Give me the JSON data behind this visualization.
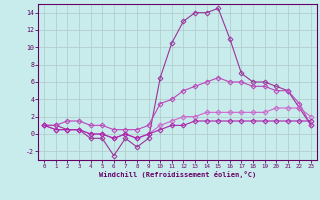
{
  "xlabel": "Windchill (Refroidissement éolien,°C)",
  "background_color": "#c8ecec",
  "grid_color": "#b0c8c8",
  "x": [
    0,
    1,
    2,
    3,
    4,
    5,
    6,
    7,
    8,
    9,
    10,
    11,
    12,
    13,
    14,
    15,
    16,
    17,
    18,
    19,
    20,
    21,
    22,
    23
  ],
  "line1": [
    1,
    1,
    0.5,
    0.5,
    -0.5,
    -0.5,
    -2.5,
    -0.5,
    -1.5,
    -0.5,
    6.5,
    10.5,
    13,
    14,
    14,
    14.5,
    11,
    7,
    6,
    6,
    5.5,
    5,
    3,
    1
  ],
  "line2": [
    1,
    1,
    1.5,
    1.5,
    1,
    1,
    0.5,
    0.5,
    0.5,
    1,
    3.5,
    4,
    5,
    5.5,
    6,
    6.5,
    6,
    6,
    5.5,
    5.5,
    5,
    5,
    3.5,
    1
  ],
  "line3": [
    1,
    0.5,
    0.5,
    0.5,
    0,
    0,
    -0.5,
    0,
    -0.5,
    0,
    1,
    1.5,
    2,
    2,
    2.5,
    2.5,
    2.5,
    2.5,
    2.5,
    2.5,
    3,
    3,
    3,
    2
  ],
  "line4": [
    1,
    0.5,
    0.5,
    0.5,
    0,
    0,
    -0.5,
    0,
    -0.5,
    0,
    0.5,
    1,
    1,
    1.5,
    1.5,
    1.5,
    1.5,
    1.5,
    1.5,
    1.5,
    1.5,
    1.5,
    1.5,
    1.5
  ],
  "line1_color": "#993399",
  "line2_color": "#bb44bb",
  "line3_color": "#cc66cc",
  "line4_color": "#aa22aa",
  "ylim": [
    -3,
    15
  ],
  "yticks": [
    -2,
    0,
    2,
    4,
    6,
    8,
    10,
    12,
    14
  ],
  "xticks": [
    0,
    1,
    2,
    3,
    4,
    5,
    6,
    7,
    8,
    9,
    10,
    11,
    12,
    13,
    14,
    15,
    16,
    17,
    18,
    19,
    20,
    21,
    22,
    23
  ]
}
